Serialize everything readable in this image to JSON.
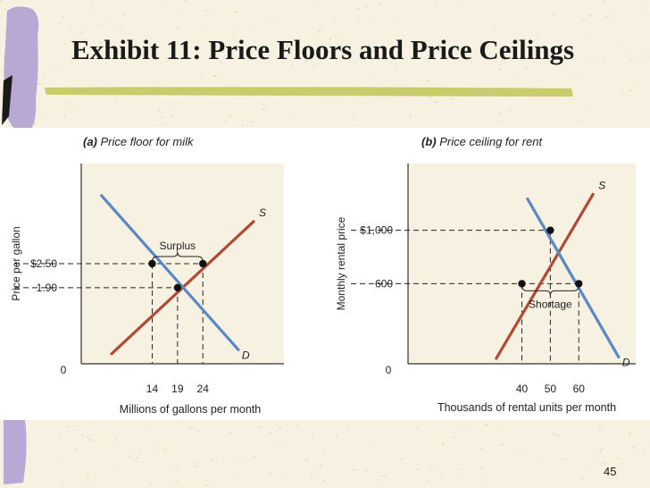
{
  "slide": {
    "title": "Exhibit 11: Price Floors and Price Ceilings",
    "page_number": "45"
  },
  "colors": {
    "background": "#f6f1e0",
    "panel": "#ffffff",
    "demand": "#5a87c5",
    "supply": "#b04a36",
    "accent_bar": "#c8cc6a",
    "accent_block": "#b9a8d4"
  },
  "chart_data": [
    {
      "type": "line",
      "panel_label": "(a)",
      "title": " Price floor for milk",
      "xlabel": "Millions of gallons per month",
      "ylabel": "Price per gallon",
      "origin_label": "0",
      "xlim": [
        0,
        40
      ],
      "ylim": [
        0,
        5
      ],
      "x_ticks": [
        {
          "value": 14,
          "label": "14"
        },
        {
          "value": 19,
          "label": "19"
        },
        {
          "value": 24,
          "label": "24"
        }
      ],
      "y_ticks": [
        {
          "value": 2.5,
          "label": "$2.50"
        },
        {
          "value": 1.9,
          "label": "1.90"
        }
      ],
      "series": [
        {
          "name": "S",
          "role": "supply",
          "points": [
            [
              6,
              0.25
            ],
            [
              34,
              3.55
            ]
          ]
        },
        {
          "name": "D",
          "role": "demand",
          "points": [
            [
              4,
              4.2
            ],
            [
              31,
              0.35
            ]
          ]
        }
      ],
      "reference_lines": [
        {
          "axis": "y",
          "value": 2.5,
          "x_to": 24
        },
        {
          "axis": "y",
          "value": 1.9,
          "x_to": 19
        },
        {
          "axis": "x",
          "value": 14,
          "y_to": 2.5
        },
        {
          "axis": "x",
          "value": 19,
          "y_to": 1.9
        },
        {
          "axis": "x",
          "value": 24,
          "y_to": 2.5
        }
      ],
      "points": [
        [
          14,
          2.5
        ],
        [
          24,
          2.5
        ],
        [
          19,
          1.9
        ]
      ],
      "annotations": [
        {
          "text": "Surplus",
          "type": "brace_above",
          "x_from": 14,
          "x_to": 24,
          "y": 2.5
        }
      ]
    },
    {
      "type": "line",
      "panel_label": "(b)",
      "title": " Price ceiling for rent",
      "xlabel": "Thousands of rental units per month",
      "ylabel": "Monthly rental price",
      "origin_label": "0",
      "xlim": [
        0,
        80
      ],
      "ylim": [
        0,
        1500
      ],
      "x_ticks": [
        {
          "value": 40,
          "label": "40"
        },
        {
          "value": 50,
          "label": "50"
        },
        {
          "value": 60,
          "label": "60"
        }
      ],
      "y_ticks": [
        {
          "value": 1000,
          "label": "$1,000"
        },
        {
          "value": 600,
          "label": "600"
        }
      ],
      "series": [
        {
          "name": "S",
          "role": "supply",
          "points": [
            [
              31,
              40
            ],
            [
              65,
              1270
            ]
          ]
        },
        {
          "name": "D",
          "role": "demand",
          "points": [
            [
              42,
              1235
            ],
            [
              74,
              50
            ]
          ]
        }
      ],
      "reference_lines": [
        {
          "axis": "y",
          "value": 1000,
          "x_to": 50
        },
        {
          "axis": "y",
          "value": 600,
          "x_to": 60
        },
        {
          "axis": "x",
          "value": 40,
          "y_to": 600
        },
        {
          "axis": "x",
          "value": 50,
          "y_to": 1000
        },
        {
          "axis": "x",
          "value": 60,
          "y_to": 600
        }
      ],
      "points": [
        [
          50,
          1000
        ],
        [
          40,
          600
        ],
        [
          60,
          600
        ]
      ],
      "annotations": [
        {
          "text": "Shortage",
          "type": "brace_below",
          "x_from": 40,
          "x_to": 60,
          "y": 600
        }
      ]
    }
  ]
}
